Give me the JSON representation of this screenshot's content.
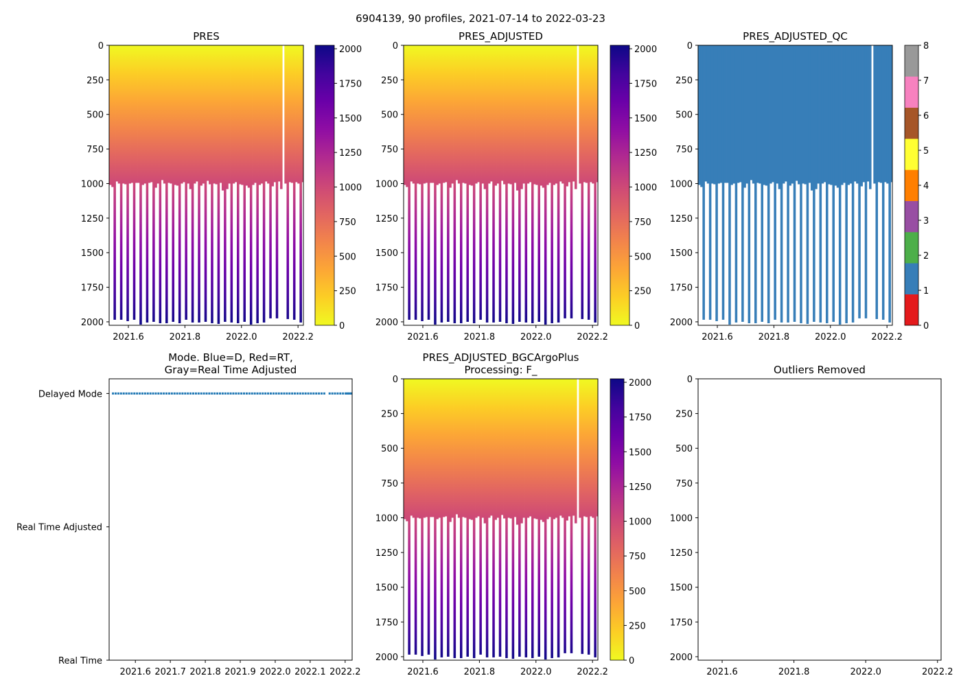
{
  "suptitle": "6904139, 90 profiles, 2021-07-14 to 2022-03-23",
  "profiles": {
    "time_start": 2021.536,
    "time_step": 0.00765,
    "count": 90,
    "qc_value": 1,
    "mode": "Delayed Mode",
    "max_pres": [
      1010,
      1025,
      1985,
      985,
      1000,
      1985,
      1000,
      1005,
      1995,
      1000,
      995,
      1985,
      995,
      995,
      2020,
      1010,
      1000,
      2005,
      995,
      990,
      2000,
      1030,
      1000,
      2010,
      975,
      1000,
      2010,
      995,
      1000,
      2000,
      1010,
      1015,
      2010,
      1000,
      990,
      1985,
      1000,
      1040,
      2005,
      1000,
      985,
      2005,
      1015,
      1000,
      2000,
      980,
      1005,
      2010,
      1000,
      1005,
      2015,
      995,
      1050,
      2000,
      1040,
      1000,
      2005,
      1000,
      990,
      2010,
      1005,
      1010,
      2000,
      1015,
      1030,
      2020,
      1010,
      995,
      2010,
      1010,
      1000,
      2005,
      985,
      1000,
      1975,
      1020,
      990,
      1975,
      985,
      1040,
      null,
      1000,
      1980,
      990,
      995,
      1985,
      990,
      1000,
      2005,
      990
    ]
  },
  "chart_data": [
    {
      "id": "pres",
      "type": "heatmap",
      "title": "PRES",
      "colormap": "plasma_r",
      "xlim": [
        2021.532,
        2022.219
      ],
      "ylim": [
        2025,
        0
      ],
      "xticks": [
        "2021.6",
        "2021.8",
        "2022.0",
        "2022.2"
      ],
      "yticks": [
        "0",
        "250",
        "500",
        "750",
        "1000",
        "1250",
        "1500",
        "1750",
        "2000"
      ],
      "colorbar": {
        "range": [
          0,
          2025
        ],
        "ticks": [
          "0",
          "250",
          "500",
          "750",
          "1000",
          "1250",
          "1500",
          "1750",
          "2000"
        ]
      }
    },
    {
      "id": "pres_adjusted",
      "type": "heatmap",
      "title": "PRES_ADJUSTED",
      "colormap": "plasma_r",
      "xlim": [
        2021.532,
        2022.219
      ],
      "ylim": [
        2025,
        0
      ],
      "xticks": [
        "2021.6",
        "2021.8",
        "2022.0",
        "2022.2"
      ],
      "yticks": [
        "0",
        "250",
        "500",
        "750",
        "1000",
        "1250",
        "1500",
        "1750",
        "2000"
      ],
      "colorbar": {
        "range": [
          0,
          2025
        ],
        "ticks": [
          "0",
          "250",
          "500",
          "750",
          "1000",
          "1250",
          "1500",
          "1750",
          "2000"
        ]
      }
    },
    {
      "id": "pres_adjusted_qc",
      "type": "heatmap",
      "title": "PRES_ADJUSTED_QC",
      "colormap": "qc",
      "xlim": [
        2021.532,
        2022.219
      ],
      "ylim": [
        2025,
        0
      ],
      "xticks": [
        "2021.6",
        "2021.8",
        "2022.0",
        "2022.2"
      ],
      "yticks": [
        "0",
        "250",
        "500",
        "750",
        "1000",
        "1250",
        "1500",
        "1750",
        "2000"
      ],
      "colorbar": {
        "range": [
          0,
          8
        ],
        "ticks": [
          "0",
          "1",
          "2",
          "3",
          "4",
          "5",
          "6",
          "7",
          "8"
        ],
        "colors": [
          "#e41a1c",
          "#377eb8",
          "#4daf4a",
          "#984ea3",
          "#ff7f00",
          "#ffff33",
          "#a65628",
          "#f781bf",
          "#999999"
        ]
      }
    },
    {
      "id": "mode",
      "type": "scatter",
      "title_lines": [
        "Mode. Blue=D, Red=RT,",
        "Gray=Real Time Adjusted"
      ],
      "xlim": [
        2021.525,
        2022.22
      ],
      "ylim": [
        0,
        2.11
      ],
      "xticks": [
        "2021.6",
        "2021.7",
        "2021.8",
        "2021.9",
        "2022.0",
        "2022.1",
        "2022.2"
      ],
      "ycategories": [
        "Real Time",
        "Real Time Adjusted",
        "Delayed Mode"
      ],
      "color": "#1f77b4"
    },
    {
      "id": "pres_bgc",
      "type": "heatmap",
      "title_lines": [
        "PRES_ADJUSTED_BGCArgoPlus",
        "Processing: F_"
      ],
      "colormap": "plasma_r",
      "xlim": [
        2021.532,
        2022.219
      ],
      "ylim": [
        2025,
        0
      ],
      "xticks": [
        "2021.6",
        "2021.8",
        "2022.0",
        "2022.2"
      ],
      "yticks": [
        "0",
        "250",
        "500",
        "750",
        "1000",
        "1250",
        "1500",
        "1750",
        "2000"
      ],
      "colorbar": {
        "range": [
          0,
          2025
        ],
        "ticks": [
          "0",
          "250",
          "500",
          "750",
          "1000",
          "1250",
          "1500",
          "1750",
          "2000"
        ]
      }
    },
    {
      "id": "outliers",
      "type": "heatmap",
      "title": "Outliers Removed",
      "xlim": [
        2021.533,
        2022.21
      ],
      "ylim": [
        2025,
        0
      ],
      "xticks": [
        "2021.6",
        "2021.8",
        "2022.0",
        "2022.2"
      ],
      "yticks": [
        "0",
        "250",
        "500",
        "750",
        "1000",
        "1250",
        "1500",
        "1750",
        "2000"
      ]
    }
  ]
}
